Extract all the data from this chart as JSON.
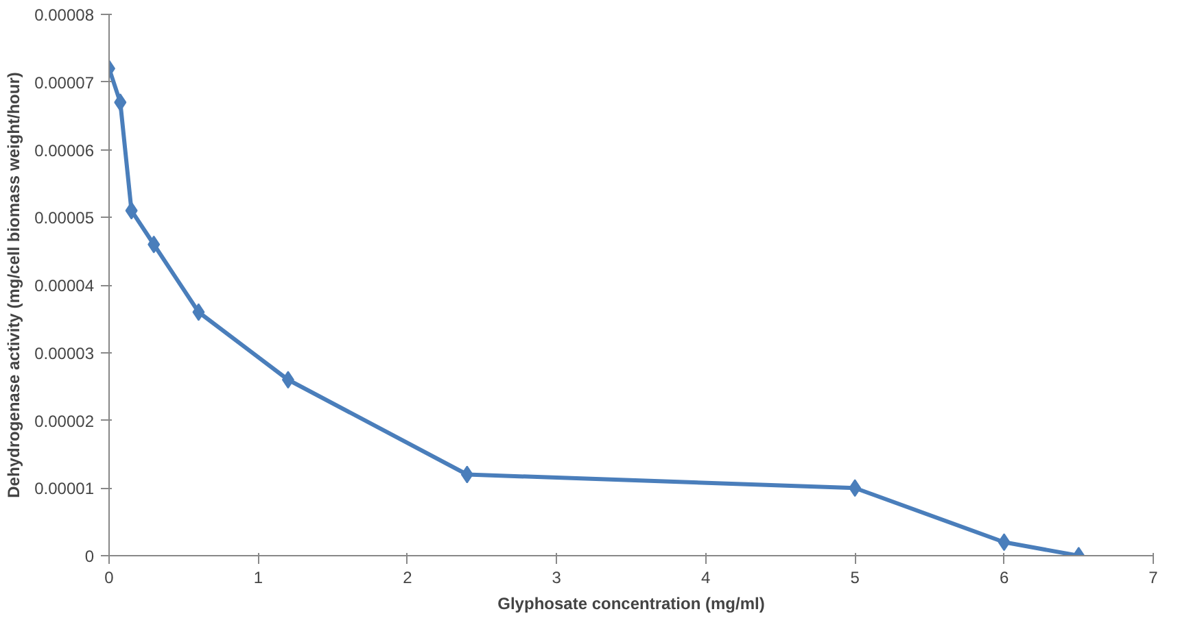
{
  "chart_data": {
    "type": "line",
    "xlabel": "Glyphosate concentration (mg/ml)",
    "ylabel": "Dehydrogenase activity (mg/cell biomass weight/hour)",
    "x": [
      0,
      0.075,
      0.15,
      0.3,
      0.6,
      1.2,
      2.4,
      5,
      6,
      6.5
    ],
    "series": [
      {
        "color": "#4a7ebb",
        "values": [
          7.2e-05,
          6.7e-05,
          5.1e-05,
          4.6e-05,
          3.6e-05,
          2.6e-05,
          1.2e-05,
          1e-05,
          2e-06,
          0.0
        ]
      }
    ],
    "xlim": [
      0,
      7
    ],
    "xticks": [
      0,
      1,
      2,
      3,
      4,
      5,
      6,
      7
    ],
    "ylim": [
      0,
      8e-05
    ],
    "yticks": [
      0,
      {
        "value": 1e-05,
        "label": "0.00001"
      },
      {
        "value": 2e-05,
        "label": "0.00002"
      },
      {
        "value": 3e-05,
        "label": "0.00003"
      },
      {
        "value": 4e-05,
        "label": "0.00004"
      },
      {
        "value": 5e-05,
        "label": "0.00005"
      },
      {
        "value": 6e-05,
        "label": "0.00006"
      },
      {
        "value": 7e-05,
        "label": "0.00007"
      },
      {
        "value": 8e-05,
        "label": "0.00008"
      }
    ],
    "marker": "diamond",
    "line_style": "solid",
    "grid": false
  }
}
